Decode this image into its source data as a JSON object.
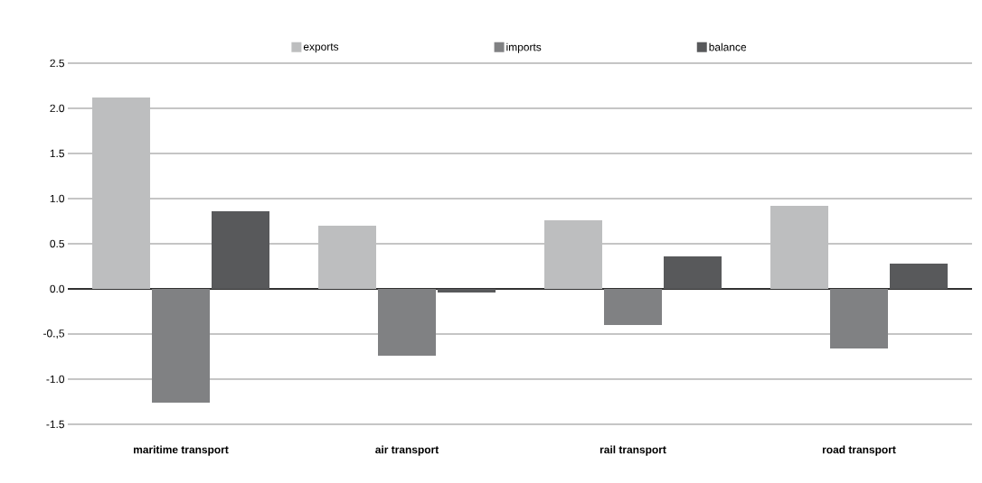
{
  "chart_data": {
    "type": "bar",
    "categories": [
      "maritime transport",
      "air transport",
      "rail transport",
      "road transport"
    ],
    "series": [
      {
        "name": "exports",
        "color": "#bdbebf",
        "values": [
          2.12,
          0.7,
          0.76,
          0.92
        ]
      },
      {
        "name": "imports",
        "color": "#808183",
        "values": [
          -1.26,
          -0.74,
          -0.4,
          -0.66
        ]
      },
      {
        "name": "balance",
        "color": "#58595b",
        "values": [
          0.86,
          -0.04,
          0.36,
          0.28
        ]
      }
    ],
    "ylim": [
      -1.5,
      2.5
    ],
    "yticks": [
      {
        "value": 2.5,
        "label": "2.5"
      },
      {
        "value": 2.0,
        "label": "2.0"
      },
      {
        "value": 1.5,
        "label": "1.5"
      },
      {
        "value": 1.0,
        "label": "1.0"
      },
      {
        "value": 0.5,
        "label": "0.5"
      },
      {
        "value": 0.0,
        "label": "0.0"
      },
      {
        "value": -0.5,
        "label": "-0.,5"
      },
      {
        "value": -1.0,
        "label": "-1.0"
      },
      {
        "value": -1.5,
        "label": "-1.5"
      }
    ],
    "grid": "y",
    "legend": "top"
  }
}
